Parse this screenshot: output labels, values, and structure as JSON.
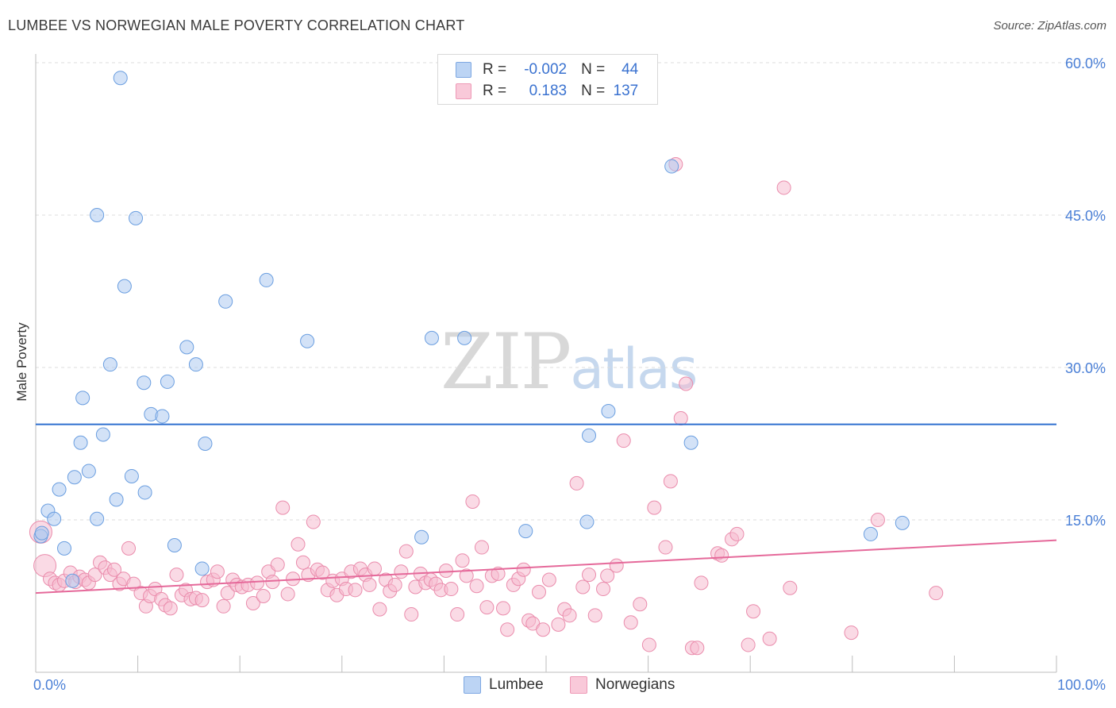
{
  "header": {
    "title": "LUMBEE VS NORWEGIAN MALE POVERTY CORRELATION CHART",
    "source": "Source: ZipAtlas.com"
  },
  "watermark": {
    "zip": "ZIP",
    "atlas": "atlas"
  },
  "legend": {
    "rows": [
      {
        "r_label": "R =",
        "r_value": "-0.002",
        "n_label": "N =",
        "n_value": "44"
      },
      {
        "r_label": "R =",
        "r_value": "0.183",
        "n_label": "N =",
        "n_value": "137"
      }
    ]
  },
  "bottom_legend": {
    "lumbee": "Lumbee",
    "norwegians": "Norwegians"
  },
  "colors": {
    "lumbee_fill": "#aecbf0",
    "lumbee_stroke": "#6a9ee0",
    "lumbee_line": "#2f6fcf",
    "norw_fill": "#f6bcd0",
    "norw_stroke": "#ea8cac",
    "norw_line": "#e5699a",
    "grid": "#dcdcdc",
    "tick_text": "#4a7fd6"
  },
  "chart_data": {
    "type": "scatter",
    "title": "LUMBEE VS NORWEGIAN MALE POVERTY CORRELATION CHART",
    "xlabel": "",
    "ylabel": "Male Poverty",
    "xlim": [
      0,
      100
    ],
    "ylim": [
      0,
      60
    ],
    "x_tick_labels": [
      "0.0%",
      "100.0%"
    ],
    "y_ticks": [
      15,
      30,
      45,
      60
    ],
    "y_tick_labels": [
      "15.0%",
      "30.0%",
      "45.0%",
      "60.0%"
    ],
    "grid": true,
    "legend_position": "top-center",
    "series": [
      {
        "name": "Lumbee",
        "r": -0.002,
        "n": 44,
        "trend": {
          "x": [
            0,
            100
          ],
          "y": [
            24.4,
            24.4
          ]
        },
        "points": [
          [
            0.5,
            13.4
          ],
          [
            1.2,
            15.9
          ],
          [
            1.8,
            15.1
          ],
          [
            2.3,
            18.0
          ],
          [
            2.8,
            12.2
          ],
          [
            3.6,
            9.0
          ],
          [
            3.8,
            19.2
          ],
          [
            4.4,
            22.6
          ],
          [
            4.6,
            27.0
          ],
          [
            5.2,
            19.8
          ],
          [
            6.0,
            15.1
          ],
          [
            6.0,
            45.0
          ],
          [
            6.6,
            23.4
          ],
          [
            7.3,
            30.3
          ],
          [
            7.9,
            17.0
          ],
          [
            8.3,
            58.5
          ],
          [
            8.7,
            38.0
          ],
          [
            9.4,
            19.3
          ],
          [
            9.8,
            44.7
          ],
          [
            10.6,
            28.5
          ],
          [
            10.7,
            17.7
          ],
          [
            11.3,
            25.4
          ],
          [
            12.4,
            25.2
          ],
          [
            12.9,
            28.6
          ],
          [
            13.6,
            12.5
          ],
          [
            14.8,
            32.0
          ],
          [
            15.7,
            30.3
          ],
          [
            16.3,
            10.2
          ],
          [
            16.6,
            22.5
          ],
          [
            18.6,
            36.5
          ],
          [
            22.6,
            38.6
          ],
          [
            26.6,
            32.6
          ],
          [
            37.8,
            13.3
          ],
          [
            38.8,
            32.9
          ],
          [
            42.0,
            32.9
          ],
          [
            48.0,
            13.9
          ],
          [
            54.0,
            14.8
          ],
          [
            54.2,
            23.3
          ],
          [
            56.1,
            25.7
          ],
          [
            62.3,
            49.8
          ],
          [
            64.2,
            22.6
          ],
          [
            81.8,
            13.6
          ],
          [
            84.9,
            14.7
          ],
          [
            0.6,
            13.7
          ]
        ]
      },
      {
        "name": "Norwegians",
        "r": 0.183,
        "n": 137,
        "trend": {
          "x": [
            0,
            100
          ],
          "y": [
            7.8,
            13.0
          ]
        },
        "points": [
          [
            0.5,
            13.8
          ],
          [
            0.9,
            10.5
          ],
          [
            1.4,
            9.2
          ],
          [
            1.9,
            8.8
          ],
          [
            2.3,
            8.6
          ],
          [
            2.8,
            9.0
          ],
          [
            3.4,
            9.8
          ],
          [
            3.9,
            8.9
          ],
          [
            4.3,
            9.4
          ],
          [
            4.8,
            9.1
          ],
          [
            5.2,
            8.8
          ],
          [
            5.8,
            9.6
          ],
          [
            6.3,
            10.8
          ],
          [
            6.8,
            10.3
          ],
          [
            7.3,
            9.6
          ],
          [
            7.7,
            10.1
          ],
          [
            8.2,
            8.7
          ],
          [
            8.6,
            9.2
          ],
          [
            9.1,
            12.2
          ],
          [
            9.6,
            8.7
          ],
          [
            10.3,
            7.8
          ],
          [
            10.8,
            6.5
          ],
          [
            11.2,
            7.5
          ],
          [
            11.7,
            8.2
          ],
          [
            12.3,
            7.2
          ],
          [
            12.7,
            6.6
          ],
          [
            13.2,
            6.3
          ],
          [
            13.8,
            9.6
          ],
          [
            14.3,
            7.6
          ],
          [
            14.7,
            8.1
          ],
          [
            15.2,
            7.2
          ],
          [
            15.7,
            7.3
          ],
          [
            16.3,
            7.1
          ],
          [
            16.8,
            8.9
          ],
          [
            17.4,
            9.1
          ],
          [
            17.8,
            9.9
          ],
          [
            18.4,
            6.5
          ],
          [
            18.8,
            7.8
          ],
          [
            19.3,
            9.1
          ],
          [
            19.7,
            8.6
          ],
          [
            20.2,
            8.4
          ],
          [
            20.8,
            8.6
          ],
          [
            21.3,
            6.8
          ],
          [
            21.7,
            8.8
          ],
          [
            22.3,
            7.5
          ],
          [
            22.8,
            9.9
          ],
          [
            23.2,
            8.9
          ],
          [
            23.7,
            10.6
          ],
          [
            24.2,
            16.2
          ],
          [
            24.7,
            7.7
          ],
          [
            25.2,
            9.2
          ],
          [
            25.7,
            12.6
          ],
          [
            26.2,
            10.8
          ],
          [
            26.7,
            9.6
          ],
          [
            27.2,
            14.8
          ],
          [
            27.6,
            10.1
          ],
          [
            28.1,
            9.8
          ],
          [
            28.6,
            8.1
          ],
          [
            29.1,
            9.0
          ],
          [
            29.5,
            7.6
          ],
          [
            30.0,
            9.2
          ],
          [
            30.4,
            8.2
          ],
          [
            30.9,
            9.9
          ],
          [
            31.3,
            8.1
          ],
          [
            31.8,
            10.2
          ],
          [
            32.3,
            9.6
          ],
          [
            32.7,
            8.6
          ],
          [
            33.2,
            10.2
          ],
          [
            33.7,
            6.2
          ],
          [
            34.3,
            9.1
          ],
          [
            34.7,
            8.0
          ],
          [
            35.2,
            8.6
          ],
          [
            35.8,
            9.9
          ],
          [
            36.3,
            11.9
          ],
          [
            36.8,
            5.7
          ],
          [
            37.2,
            8.4
          ],
          [
            37.7,
            9.7
          ],
          [
            38.2,
            8.8
          ],
          [
            38.7,
            9.1
          ],
          [
            39.2,
            8.7
          ],
          [
            39.7,
            8.1
          ],
          [
            40.2,
            10.0
          ],
          [
            40.7,
            8.2
          ],
          [
            41.3,
            5.7
          ],
          [
            41.8,
            11.0
          ],
          [
            42.2,
            9.5
          ],
          [
            42.8,
            16.8
          ],
          [
            43.2,
            8.5
          ],
          [
            43.7,
            12.3
          ],
          [
            44.2,
            6.4
          ],
          [
            44.7,
            9.5
          ],
          [
            45.3,
            9.7
          ],
          [
            45.8,
            6.3
          ],
          [
            46.2,
            4.2
          ],
          [
            46.8,
            8.6
          ],
          [
            47.3,
            9.2
          ],
          [
            47.8,
            10.1
          ],
          [
            48.3,
            5.1
          ],
          [
            48.7,
            4.8
          ],
          [
            49.3,
            7.9
          ],
          [
            49.7,
            4.2
          ],
          [
            50.3,
            9.1
          ],
          [
            51.2,
            4.7
          ],
          [
            51.8,
            6.2
          ],
          [
            52.3,
            5.6
          ],
          [
            53.0,
            18.6
          ],
          [
            53.6,
            8.4
          ],
          [
            54.2,
            9.6
          ],
          [
            54.8,
            5.6
          ],
          [
            55.6,
            8.2
          ],
          [
            56.0,
            9.5
          ],
          [
            56.9,
            10.5
          ],
          [
            57.6,
            22.8
          ],
          [
            58.3,
            4.9
          ],
          [
            59.2,
            6.7
          ],
          [
            60.1,
            2.7
          ],
          [
            60.6,
            16.2
          ],
          [
            61.7,
            12.3
          ],
          [
            62.2,
            18.8
          ],
          [
            62.7,
            50.0
          ],
          [
            63.2,
            25.0
          ],
          [
            63.7,
            28.4
          ],
          [
            64.3,
            2.4
          ],
          [
            64.8,
            2.4
          ],
          [
            65.2,
            8.8
          ],
          [
            66.8,
            11.7
          ],
          [
            67.2,
            11.5
          ],
          [
            68.2,
            13.1
          ],
          [
            68.7,
            13.6
          ],
          [
            69.8,
            2.7
          ],
          [
            70.3,
            6.0
          ],
          [
            71.9,
            3.3
          ],
          [
            73.3,
            47.7
          ],
          [
            73.9,
            8.3
          ],
          [
            79.9,
            3.9
          ],
          [
            82.5,
            15.0
          ],
          [
            88.2,
            7.8
          ]
        ]
      }
    ]
  }
}
